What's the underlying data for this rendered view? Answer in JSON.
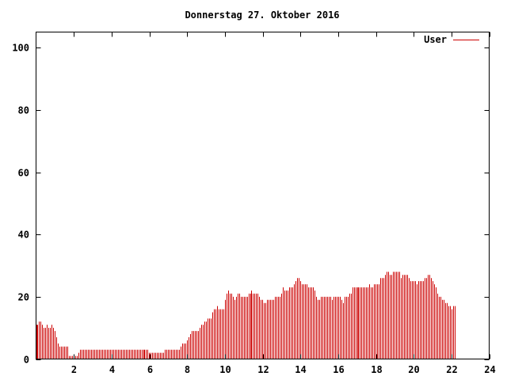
{
  "chart_data": {
    "type": "bar",
    "title": "Donnerstag 27. Oktober 2016",
    "xlabel": "",
    "ylabel": "",
    "xlim": [
      0,
      24
    ],
    "ylim": [
      0,
      105
    ],
    "xticks": [
      2,
      4,
      6,
      8,
      10,
      12,
      14,
      16,
      18,
      20,
      22,
      24
    ],
    "yticks": [
      0,
      20,
      40,
      60,
      80,
      100
    ],
    "xtick_labels": [
      "2",
      "4",
      "6",
      "8",
      "10",
      "12",
      "14",
      "16",
      "18",
      "20",
      "22",
      "24"
    ],
    "ytick_labels": [
      "0",
      "20",
      "40",
      "60",
      "80",
      "100"
    ],
    "legend": {
      "position": "top-right",
      "entries": [
        {
          "label": "User",
          "color": "#cc0000"
        }
      ]
    },
    "series": [
      {
        "name": "User",
        "color": "#cc0000",
        "x_start": 0,
        "x_step": 0.0833,
        "values": [
          11,
          11,
          12,
          12,
          11,
          10,
          10,
          11,
          10,
          10,
          11,
          10,
          9,
          7,
          5,
          4,
          4,
          4,
          4,
          4,
          4,
          1,
          1,
          1,
          1,
          1,
          1,
          2,
          3,
          3,
          3,
          3,
          3,
          3,
          3,
          3,
          3,
          3,
          3,
          3,
          3,
          3,
          3,
          3,
          3,
          3,
          3,
          3,
          3,
          3,
          3,
          3,
          3,
          3,
          3,
          3,
          3,
          3,
          3,
          3,
          3,
          3,
          3,
          3,
          3,
          3,
          3,
          3,
          3,
          3,
          3,
          3,
          2,
          2,
          2,
          2,
          2,
          2,
          2,
          2,
          2,
          2,
          3,
          3,
          3,
          3,
          3,
          3,
          3,
          3,
          3,
          3,
          4,
          5,
          5,
          5,
          6,
          7,
          8,
          9,
          9,
          9,
          9,
          9,
          10,
          11,
          11,
          12,
          12,
          13,
          13,
          13,
          15,
          16,
          16,
          17,
          16,
          16,
          16,
          16,
          19,
          21,
          22,
          21,
          21,
          20,
          19,
          20,
          21,
          21,
          20,
          20,
          20,
          20,
          20,
          21,
          21,
          22,
          21,
          21,
          21,
          21,
          20,
          19,
          19,
          18,
          18,
          19,
          19,
          19,
          19,
          19,
          20,
          20,
          20,
          20,
          21,
          23,
          22,
          22,
          22,
          23,
          23,
          23,
          24,
          25,
          26,
          26,
          25,
          24,
          24,
          24,
          24,
          23,
          23,
          23,
          23,
          22,
          20,
          19,
          19,
          20,
          20,
          20,
          20,
          20,
          20,
          20,
          19,
          20,
          20,
          20,
          20,
          20,
          19,
          18,
          20,
          20,
          20,
          21,
          21,
          23,
          23,
          23,
          23,
          23,
          23,
          23,
          23,
          23,
          23,
          23,
          24,
          23,
          23,
          24,
          24,
          24,
          24,
          26,
          26,
          26,
          27,
          28,
          28,
          27,
          27,
          28,
          28,
          28,
          28,
          28,
          26,
          27,
          27,
          27,
          27,
          26,
          25,
          25,
          25,
          25,
          24,
          25,
          25,
          25,
          25,
          26,
          26,
          27,
          27,
          26,
          25,
          24,
          23,
          21,
          20,
          20,
          19,
          19,
          18,
          18,
          17,
          17,
          16,
          17,
          17
        ]
      }
    ]
  }
}
